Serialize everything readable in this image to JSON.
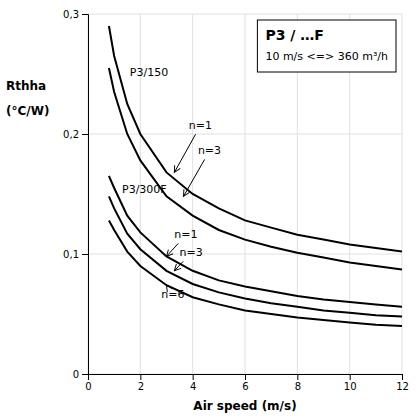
{
  "chart_data": {
    "type": "line",
    "title": "P3 / …F",
    "subtitle": "10 m/s <=> 360 m³/h",
    "xlabel": "Air speed (m/s)",
    "ylabel": [
      "Rthha",
      "(°C/W)"
    ],
    "xlim": [
      0,
      12
    ],
    "ylim": [
      0,
      0.3
    ],
    "xticks": [
      0,
      2,
      4,
      6,
      8,
      10,
      12
    ],
    "yticks": [
      0,
      {
        "value": 0.1,
        "label": "0,1"
      },
      {
        "value": 0.2,
        "label": "0,2"
      },
      {
        "value": 0.3,
        "label": "0,3"
      }
    ],
    "grid": true,
    "x": [
      0.8,
      1.0,
      1.5,
      2.0,
      3.0,
      4.0,
      5.0,
      6.0,
      7.0,
      8.0,
      9.0,
      10.0,
      11.0,
      12.0
    ],
    "series": [
      {
        "color": "#000000",
        "values": [
          0.29,
          0.265,
          0.225,
          0.2,
          0.168,
          0.15,
          0.138,
          0.128,
          0.122,
          0.116,
          0.112,
          0.108,
          0.105,
          0.102
        ]
      },
      {
        "color": "#000000",
        "values": [
          0.255,
          0.235,
          0.2,
          0.178,
          0.148,
          0.132,
          0.12,
          0.112,
          0.106,
          0.101,
          0.097,
          0.093,
          0.09,
          0.087
        ]
      },
      {
        "color": "#000000",
        "values": [
          0.165,
          0.155,
          0.132,
          0.118,
          0.098,
          0.086,
          0.078,
          0.073,
          0.069,
          0.065,
          0.062,
          0.06,
          0.058,
          0.056
        ]
      },
      {
        "color": "#000000",
        "values": [
          0.148,
          0.138,
          0.117,
          0.104,
          0.086,
          0.075,
          0.068,
          0.063,
          0.059,
          0.056,
          0.053,
          0.051,
          0.049,
          0.048
        ]
      },
      {
        "color": "#000000",
        "values": [
          0.128,
          0.12,
          0.102,
          0.09,
          0.074,
          0.064,
          0.058,
          0.053,
          0.05,
          0.047,
          0.045,
          0.043,
          0.041,
          0.04
        ]
      }
    ],
    "annotations": [
      {
        "text": "P3/150",
        "xy": [
          1.6,
          0.248
        ]
      },
      {
        "text": "P3/300F",
        "xy": [
          1.3,
          0.151
        ]
      },
      {
        "text": "n=1",
        "xy": [
          3.85,
          0.204
        ],
        "arrow_xy": [
          3.3,
          0.168
        ]
      },
      {
        "text": "n=3",
        "xy": [
          4.2,
          0.183
        ],
        "arrow_xy": [
          3.65,
          0.148
        ]
      },
      {
        "text": "n=1",
        "xy": [
          3.3,
          0.113
        ],
        "arrow_xy": [
          3.0,
          0.098
        ]
      },
      {
        "text": "n=3",
        "xy": [
          3.5,
          0.098
        ],
        "arrow_xy": [
          3.3,
          0.086
        ]
      },
      {
        "text": "n=6",
        "xy": [
          2.8,
          0.063
        ],
        "arrow_xy": [
          3.0,
          0.074
        ]
      }
    ]
  }
}
